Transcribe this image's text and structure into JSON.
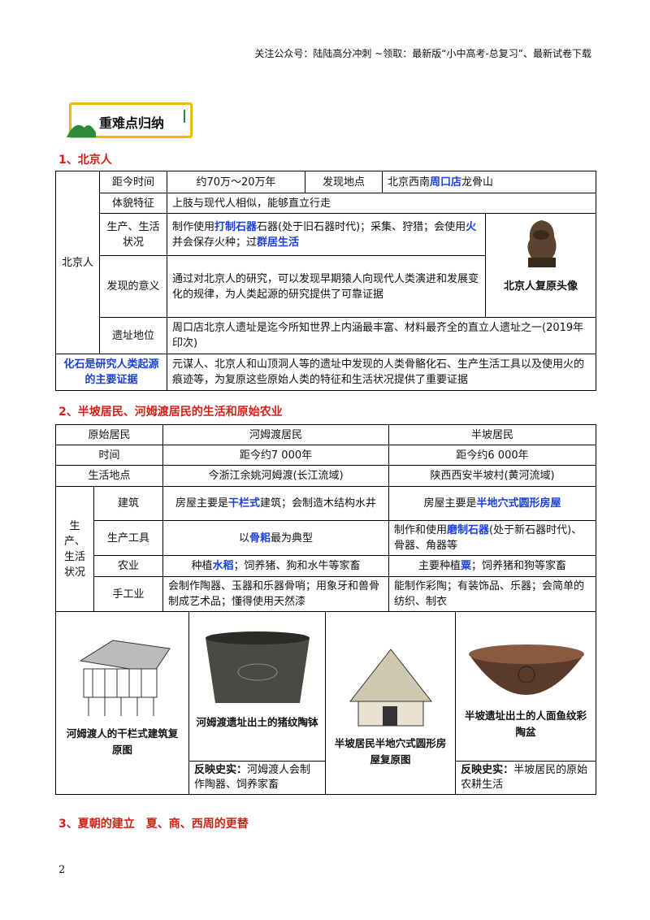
{
  "header": {
    "notice": "关注公众号：陆陆高分冲刺  ~领取：最新版“小中高考-总复习”、最新试卷下载"
  },
  "badge": {
    "title": "重难点归纳"
  },
  "section1": {
    "title": "1、北京人",
    "group_label": "北京人",
    "rows": [
      {
        "label": "距今时间",
        "value": [
          "约70万～20万年"
        ],
        "label2": "发现地点",
        "value2": [
          "北京西南",
          "周口店",
          "龙骨山"
        ]
      },
      {
        "label": "体貌特征",
        "value": [
          "上肢与现代人相似，能够直立行走"
        ]
      },
      {
        "label": "生产、生活状况",
        "value": [
          "制作使用",
          "打制石器",
          "石器(处于旧石器时代)；采集、狩猎；会使用",
          "火",
          "并会保存火种；过",
          "群居生活"
        ]
      },
      {
        "label": "发现的意义",
        "value": [
          "通过对北京人的研究，可以发现早期猿人向现代人类演进和发展变化的规律，为人类起源的研究提供了可靠证据"
        ]
      },
      {
        "label": "遗址地位",
        "value": [
          "周口店北京人遗址是迄今所知世界上内涵最丰富、材料最齐全的直立人遗址之一(2019年印次)"
        ]
      }
    ],
    "image_caption": "北京人复原头像",
    "evidence": {
      "label": "化石是研究人类起源的主要证据",
      "value": [
        "元谋人、北京人和山顶洞人等的遗址中发现的人类骨骼化石、生产生活工具以及使用火的痕迹等，为复原这些原始人类的特征和生活状况提供了重要证据"
      ]
    }
  },
  "section2": {
    "title": "2、半坡居民、河姆渡居民的生活和原始农业",
    "header": [
      "原始居民",
      "河姆渡居民",
      "半坡居民"
    ],
    "rows": [
      [
        "时间",
        "距今约7 000年",
        "距今约6 000年"
      ],
      [
        "生活地点",
        "今浙江余姚河姆渡(长江流域)",
        "陕西西安半坡村(黄河流域)"
      ]
    ],
    "group_label": "生产、生活状况",
    "subrows": [
      {
        "label": "建筑",
        "hemudu": [
          "房屋主要是",
          "干栏式",
          "建筑；会制造木结构水井"
        ],
        "banpo": [
          "房屋主要是",
          "半地穴式圆形房屋"
        ]
      },
      {
        "label": "生产工具",
        "hemudu": [
          "以",
          "骨耜",
          "最为典型"
        ],
        "banpo": [
          "制作和使用",
          "磨制石器",
          "(处于新石器时代)、骨器、角器等"
        ]
      },
      {
        "label": "农业",
        "hemudu": [
          "种植",
          "水稻",
          "；饲养猪、狗和水牛等家畜"
        ],
        "banpo": [
          "主要种植",
          "粟",
          "；饲养猪和狗等家畜"
        ]
      },
      {
        "label": "手工业",
        "hemudu": [
          "会制作陶器、玉器和乐器骨哨；用象牙和兽骨制成艺术品；懂得使用天然漆"
        ],
        "banpo": [
          "能制作彩陶；有装饰品、乐器；会简单的纺织、制衣"
        ]
      }
    ],
    "images": [
      {
        "caption": "河姆渡人的干栏式建筑复原图"
      },
      {
        "caption": "河姆渡遗址出土的猪纹陶钵",
        "note_label": "反映史实：",
        "note": "河姆渡人会制作陶器、饲养家畜"
      },
      {
        "caption": "半坡居民半地穴式圆形房屋复原图"
      },
      {
        "caption": "半坡遗址出土的人面鱼纹彩陶盆",
        "note_label": "反映史实：",
        "note": "半坡居民的原始农耕生活"
      }
    ]
  },
  "section3": {
    "title": "3、夏朝的建立　夏、商、西周的更替"
  },
  "page_number": 2
}
